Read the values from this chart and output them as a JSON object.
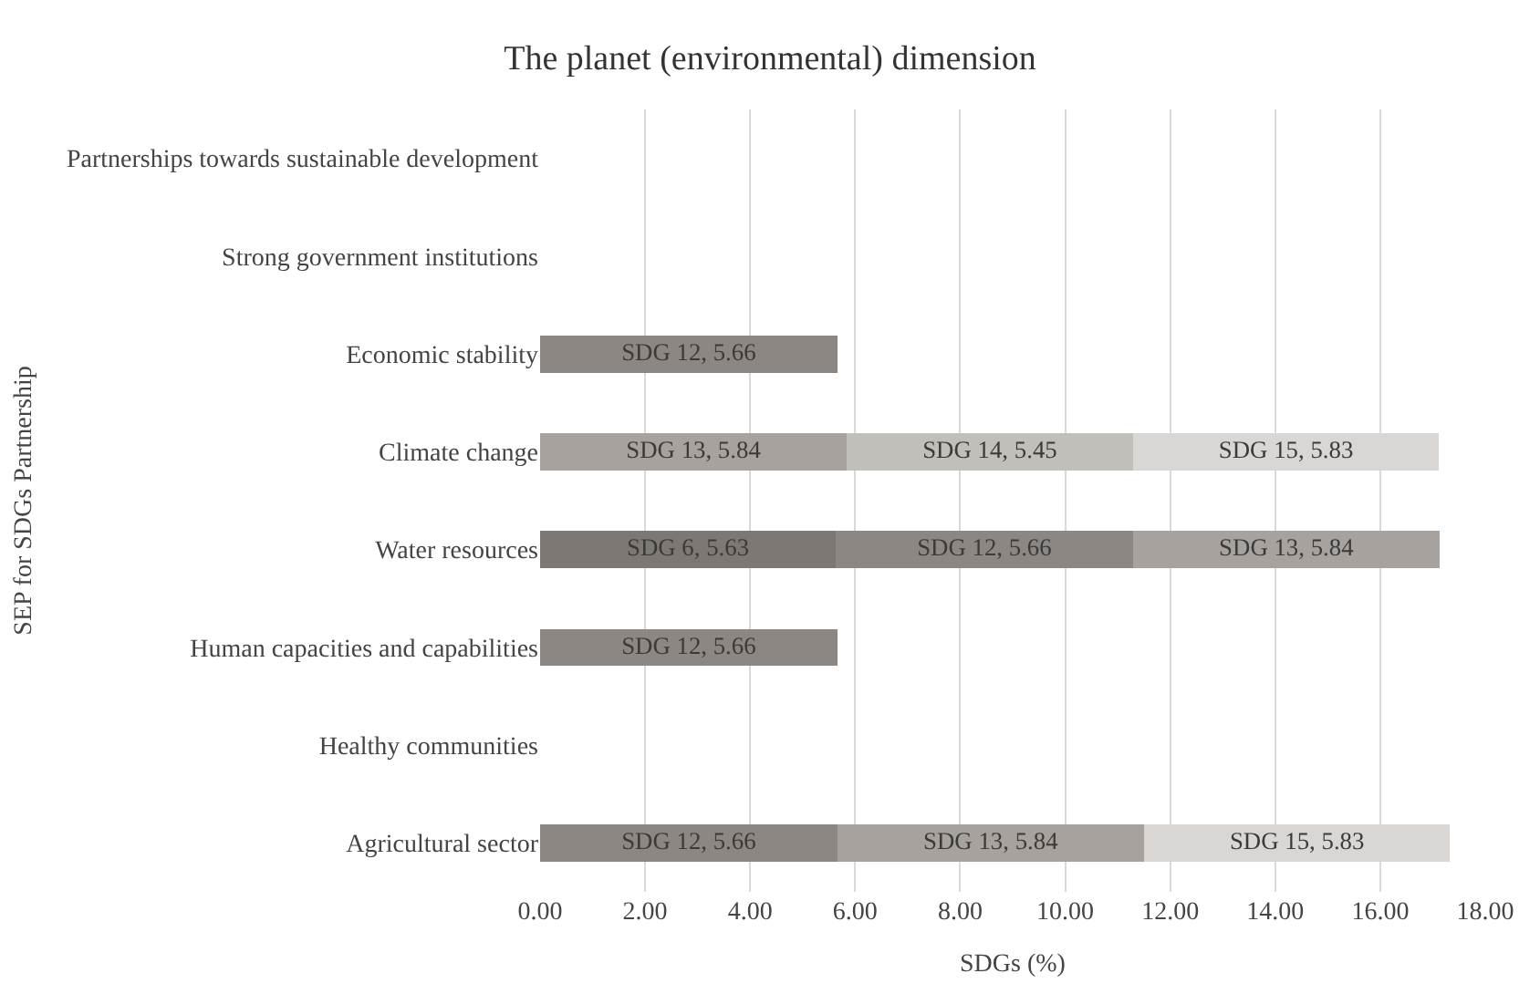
{
  "chart_data": {
    "type": "bar",
    "orientation": "horizontal",
    "stacked": true,
    "title": "The planet (environmental) dimension",
    "xlabel": "SDGs (%)",
    "ylabel": "SEP for SDGs Partnership",
    "categories": [
      "Partnerships towards sustainable development",
      "Strong government institutions",
      "Economic stability",
      "Climate change",
      "Water resources",
      "Human capacities and capabilities",
      "Healthy communities",
      "Agricultural sector"
    ],
    "series": [
      {
        "color": "#7d7874",
        "values": [
          null,
          null,
          null,
          null,
          5.63,
          null,
          null,
          null
        ],
        "value_labels": [
          null,
          null,
          null,
          null,
          "SDG 6, 5.63",
          null,
          null,
          null
        ]
      },
      {
        "color": "#8c8783",
        "values": [
          null,
          null,
          5.66,
          null,
          5.66,
          5.66,
          null,
          5.66
        ],
        "value_labels": [
          null,
          null,
          "SDG 12, 5.66",
          null,
          "SDG 12, 5.66",
          "SDG 12, 5.66",
          null,
          "SDG 12, 5.66"
        ]
      },
      {
        "color": "#a7a29e",
        "values": [
          null,
          null,
          null,
          5.84,
          5.84,
          null,
          null,
          5.84
        ],
        "value_labels": [
          null,
          null,
          null,
          "SDG 13, 5.84",
          "SDG 13, 5.84",
          null,
          null,
          "SDG 13, 5.84"
        ]
      },
      {
        "color": "#c2beba",
        "values": [
          null,
          null,
          null,
          5.45,
          null,
          null,
          null,
          null
        ],
        "value_labels": [
          null,
          null,
          null,
          "SDG 14, 5.45",
          null,
          null,
          null,
          null
        ]
      },
      {
        "color": "#d9d6d3",
        "values": [
          null,
          null,
          null,
          5.83,
          null,
          null,
          null,
          5.83
        ],
        "value_labels": [
          null,
          null,
          null,
          "SDG 15, 5.83",
          null,
          null,
          null,
          "SDG 15, 5.83"
        ]
      }
    ],
    "xlim": [
      0,
      18
    ],
    "xticks": [
      {
        "value": 0,
        "label": "0.00"
      },
      {
        "value": 2,
        "label": "2.00"
      },
      {
        "value": 4,
        "label": "4.00"
      },
      {
        "value": 6,
        "label": "6.00"
      },
      {
        "value": 8,
        "label": "8.00"
      },
      {
        "value": 10,
        "label": "10.00"
      },
      {
        "value": 12,
        "label": "12.00"
      },
      {
        "value": 14,
        "label": "14.00"
      },
      {
        "value": 16,
        "label": "16.00"
      },
      {
        "value": 18,
        "label": "18.00"
      }
    ],
    "grid": "x",
    "legend": false
  }
}
